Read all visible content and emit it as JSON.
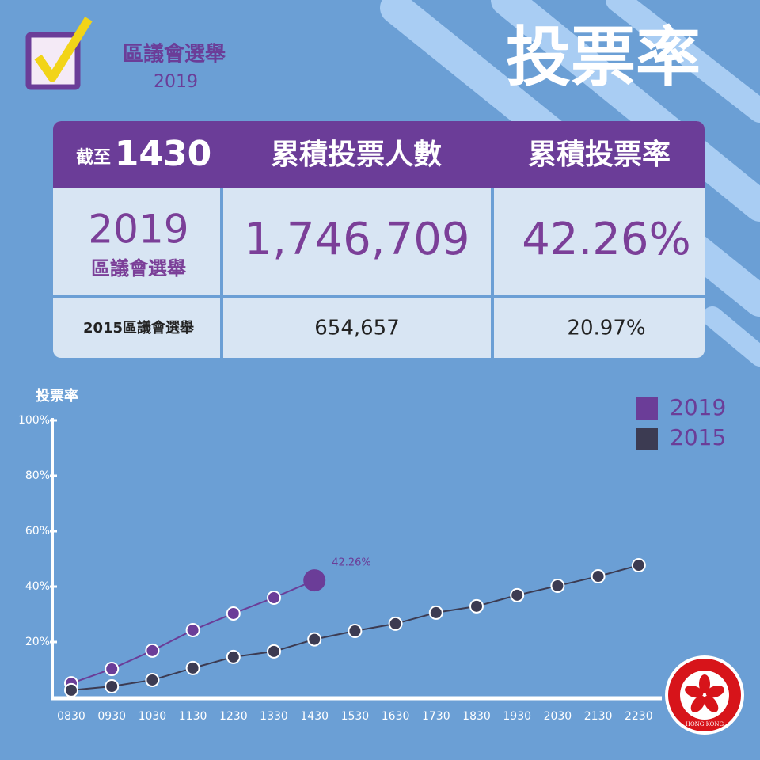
{
  "header": {
    "event": "區議會選舉",
    "year": "2019",
    "title": "投票率"
  },
  "table": {
    "header": [
      "截至",
      "1430",
      "累積投票人數",
      "累積投票率"
    ],
    "rows": [
      [
        "2019",
        "區議會選舉",
        "1,746,709",
        "42.26%"
      ],
      [
        "2015區議會選舉",
        "654,657",
        "20.97%"
      ]
    ]
  },
  "emblem": "HONG KONG",
  "chart_data": {
    "type": "line",
    "y_label": "投票率",
    "categories": [
      "0830",
      "0930",
      "1030",
      "1130",
      "1230",
      "1330",
      "1430",
      "1530",
      "1630",
      "1730",
      "1830",
      "1930",
      "2030",
      "2130",
      "2230"
    ],
    "series": [
      {
        "name": "2019",
        "color": "#6b3d98",
        "values": [
          5.1,
          10.3,
          16.9,
          24.3,
          30.3,
          36,
          42.26,
          null,
          null,
          null,
          null,
          null,
          null,
          null,
          null
        ],
        "value_labels": [
          null,
          null,
          null,
          null,
          null,
          null,
          "42.26%",
          null,
          null,
          null,
          null,
          null,
          null,
          null,
          null
        ]
      },
      {
        "name": "2015",
        "color": "#3c3b52",
        "values": [
          2.6,
          4,
          6.3,
          10.6,
          14.6,
          16.6,
          20.97,
          24,
          26.6,
          30.6,
          32.9,
          36.9,
          40.3,
          43.7,
          47.7
        ]
      }
    ],
    "ylim": [
      0,
      100
    ],
    "yticks": [
      {
        "value": 20,
        "label": "20%"
      },
      {
        "value": 40,
        "label": "40%"
      },
      {
        "value": 60,
        "label": "60%"
      },
      {
        "value": 80,
        "label": "80%"
      },
      {
        "value": 100,
        "label": "100%"
      }
    ],
    "legend": "top-right"
  }
}
